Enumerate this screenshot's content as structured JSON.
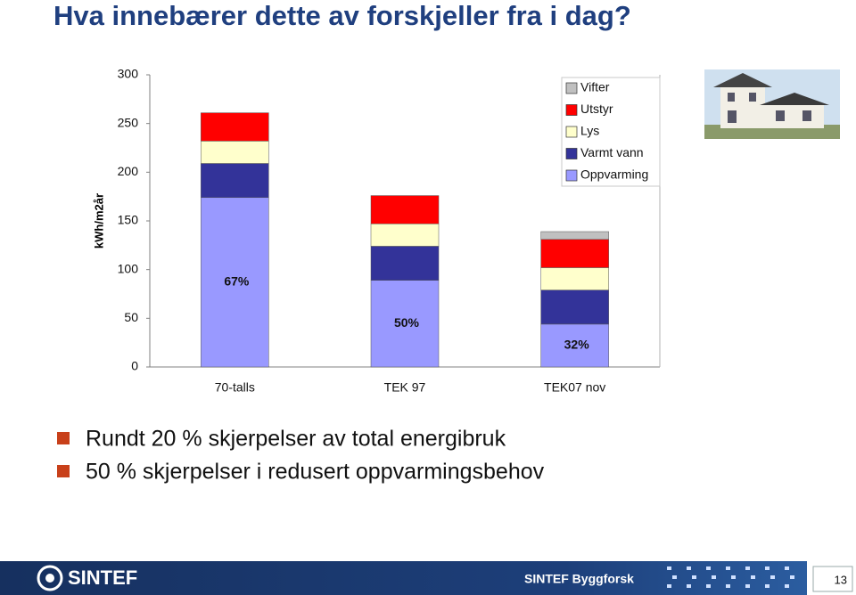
{
  "header": {
    "title": "Hva innebærer dette av forskjeller fra i dag?"
  },
  "chart_data": {
    "type": "bar",
    "stacked": true,
    "categories": [
      "70-talls",
      "TEK 97",
      "TEK07 nov"
    ],
    "series": [
      {
        "name": "Oppvarming",
        "color": "#9999ff",
        "values": [
          174,
          89,
          44
        ]
      },
      {
        "name": "Varmt vann",
        "color": "#333399",
        "values": [
          35,
          35,
          35
        ]
      },
      {
        "name": "Lys",
        "color": "#ffffcc",
        "values": [
          23,
          23,
          23
        ]
      },
      {
        "name": "Utstyr",
        "color": "#ff0000",
        "values": [
          29,
          29,
          29
        ]
      },
      {
        "name": "Vifter",
        "color": "#c0c0c0",
        "values": [
          0,
          0,
          8
        ]
      }
    ],
    "ylim": [
      0,
      300
    ],
    "yticks": [
      0,
      50,
      100,
      150,
      200,
      250,
      300
    ],
    "y_label": "kWh/m2år",
    "annotations": [
      "67%",
      "50%",
      "32%"
    ],
    "legend": "top-right"
  },
  "bullets": [
    "Rundt 20 % skjerpelser av total energibruk",
    "50 % skjerpelser i redusert oppvarmingsbehov"
  ],
  "footer": {
    "logo": "SINTEF",
    "organization": "SINTEF Byggforsk",
    "page": 13
  }
}
